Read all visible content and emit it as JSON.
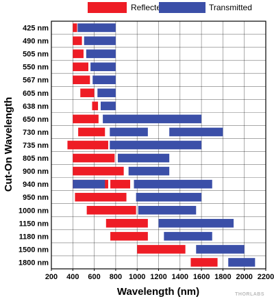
{
  "chart_data": {
    "type": "bar",
    "orientation": "horizontal",
    "subtype": "floating-range",
    "xlabel": "Wavelength (nm)",
    "ylabel": "Cut-On Wavelength",
    "xlim": [
      200,
      2200
    ],
    "xticks": [
      "200",
      "400",
      "600",
      "800",
      "1000",
      "1200",
      "1400",
      "1600",
      "1800",
      "2000",
      "2200"
    ],
    "xtick_values": [
      200,
      400,
      600,
      800,
      1000,
      1200,
      1400,
      1600,
      1800,
      2000,
      2200
    ],
    "grid": true,
    "legend_position": "top",
    "categories": [
      "425 nm",
      "490 nm",
      "505 nm",
      "550 nm",
      "567 nm",
      "605 nm",
      "638 nm",
      "650 nm",
      "730 nm",
      "735 nm",
      "805 nm",
      "900 nm",
      "940 nm",
      "950 nm",
      "1000 nm",
      "1150 nm",
      "1180 nm",
      "1500 nm",
      "1800 nm"
    ],
    "series": [
      {
        "name": "Reflected",
        "color": "#ee1c25",
        "ranges": [
          [
            [
              400,
              440
            ]
          ],
          [
            [
              400,
              485
            ]
          ],
          [
            [
              400,
              500
            ]
          ],
          [
            [
              400,
              545
            ]
          ],
          [
            [
              400,
              560
            ]
          ],
          [
            [
              470,
              600
            ]
          ],
          [
            [
              580,
              635
            ]
          ],
          [
            [
              400,
              640
            ]
          ],
          [
            [
              450,
              700
            ]
          ],
          [
            [
              350,
              730
            ]
          ],
          [
            [
              400,
              790
            ]
          ],
          [
            [
              400,
              875
            ]
          ],
          [
            [
              400,
              730
            ],
            [
              750,
              935
            ]
          ],
          [
            [
              420,
              900
            ]
          ],
          [
            [
              530,
              990
            ]
          ],
          [
            [
              710,
              1100
            ]
          ],
          [
            [
              750,
              1100
            ]
          ],
          [
            [
              1000,
              1450
            ]
          ],
          [
            [
              1500,
              1750
            ]
          ]
        ]
      },
      {
        "name": "Transmitted",
        "color": "#3b4fa8",
        "ranges": [
          [
            [
              445,
              800
            ]
          ],
          [
            [
              505,
              800
            ]
          ],
          [
            [
              525,
              800
            ]
          ],
          [
            [
              565,
              800
            ]
          ],
          [
            [
              585,
              800
            ]
          ],
          [
            [
              630,
              800
            ]
          ],
          [
            [
              660,
              800
            ]
          ],
          [
            [
              680,
              1600
            ]
          ],
          [
            [
              745,
              1100
            ],
            [
              1300,
              1800
            ]
          ],
          [
            [
              745,
              1600
            ]
          ],
          [
            [
              820,
              1300
            ]
          ],
          [
            [
              920,
              1300
            ]
          ],
          [
            [
              400,
              700
            ],
            [
              970,
              1700
            ]
          ],
          [
            [
              990,
              1600
            ]
          ],
          [
            [
              1010,
              1550
            ]
          ],
          [
            [
              1200,
              1900
            ]
          ],
          [
            [
              1250,
              1700
            ]
          ],
          [
            [
              1550,
              2000
            ]
          ],
          [
            [
              1850,
              2100
            ]
          ]
        ]
      }
    ],
    "logo": "THORLABS"
  }
}
